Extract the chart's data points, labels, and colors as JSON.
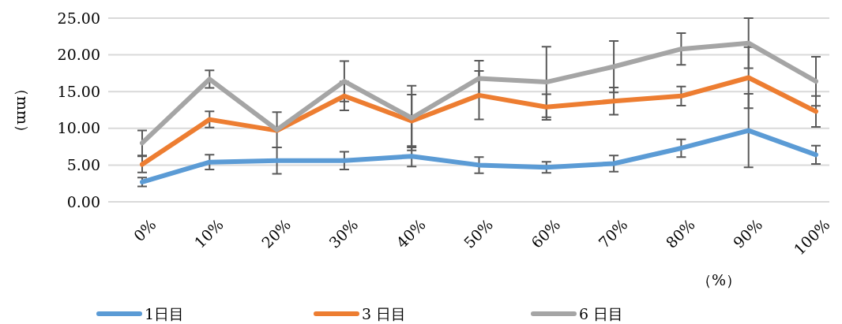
{
  "chart_data": {
    "type": "line",
    "xlabel": "（%）",
    "ylabel": "（mm）",
    "categories": [
      "0%",
      "10%",
      "20%",
      "30%",
      "40%",
      "50%",
      "60%",
      "70%",
      "80%",
      "90%",
      "100%"
    ],
    "series": [
      {
        "name": "1日目",
        "color": "#5b9bd5",
        "values": [
          2.7,
          5.4,
          5.6,
          5.6,
          6.2,
          5.0,
          4.7,
          5.2,
          7.3,
          9.7,
          6.4
        ],
        "errors": [
          0.6,
          1.0,
          1.8,
          1.2,
          1.4,
          1.1,
          0.75,
          1.1,
          1.2,
          5.0,
          1.25
        ]
      },
      {
        "name": "3 日目",
        "color": "#ed7d31",
        "values": [
          5.1,
          11.2,
          9.7,
          14.4,
          11.0,
          14.5,
          12.9,
          13.7,
          14.4,
          16.9,
          12.3
        ],
        "errors": [
          1.1,
          1.1,
          null,
          1.95,
          3.6,
          3.3,
          1.75,
          1.85,
          1.3,
          4.15,
          2.1
        ]
      },
      {
        "name": "6 日目",
        "color": "#a5a5a5",
        "values": [
          8.0,
          16.7,
          9.8,
          16.4,
          11.4,
          16.8,
          16.3,
          18.4,
          20.8,
          21.6,
          16.4
        ],
        "errors": [
          1.7,
          1.2,
          2.4,
          2.75,
          4.4,
          2.4,
          4.8,
          3.5,
          2.15,
          3.4,
          3.35
        ]
      }
    ],
    "ylim": [
      0,
      25
    ],
    "yticks": [
      {
        "value": 0,
        "label": "0.00"
      },
      {
        "value": 5,
        "label": "5.00"
      },
      {
        "value": 10,
        "label": "10.00"
      },
      {
        "value": 15,
        "label": "15.00"
      },
      {
        "value": 20,
        "label": "20.00"
      },
      {
        "value": 25,
        "label": "25.00"
      }
    ],
    "grid": "y",
    "legend": "bottom",
    "marker": "none",
    "line_style": "solid"
  }
}
